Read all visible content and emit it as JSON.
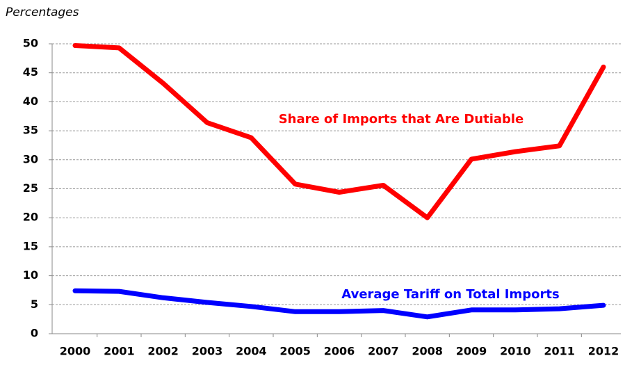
{
  "chart_data": {
    "type": "line",
    "y_axis_label": "Percentages",
    "categories": [
      "2000",
      "2001",
      "2002",
      "2003",
      "2004",
      "2005",
      "2006",
      "2007",
      "2008",
      "2009",
      "2010",
      "2011",
      "2012"
    ],
    "series": [
      {
        "name": "Share of Imports that Are Dutiable",
        "color": "#ff0000",
        "values": [
          49.7,
          49.3,
          43.2,
          36.4,
          33.8,
          25.8,
          24.4,
          25.6,
          20.0,
          30.1,
          31.4,
          32.4,
          46.0
        ]
      },
      {
        "name": "Average Tariff on Total Imports",
        "color": "#0000ff",
        "values": [
          7.4,
          7.3,
          6.2,
          5.4,
          4.7,
          3.8,
          3.8,
          4.0,
          2.9,
          4.1,
          4.1,
          4.3,
          4.9
        ]
      }
    ],
    "ylim": [
      0,
      50
    ],
    "yticks": [
      0,
      5,
      10,
      15,
      20,
      25,
      30,
      35,
      40,
      45,
      50
    ],
    "grid": true,
    "legend": "inline"
  }
}
